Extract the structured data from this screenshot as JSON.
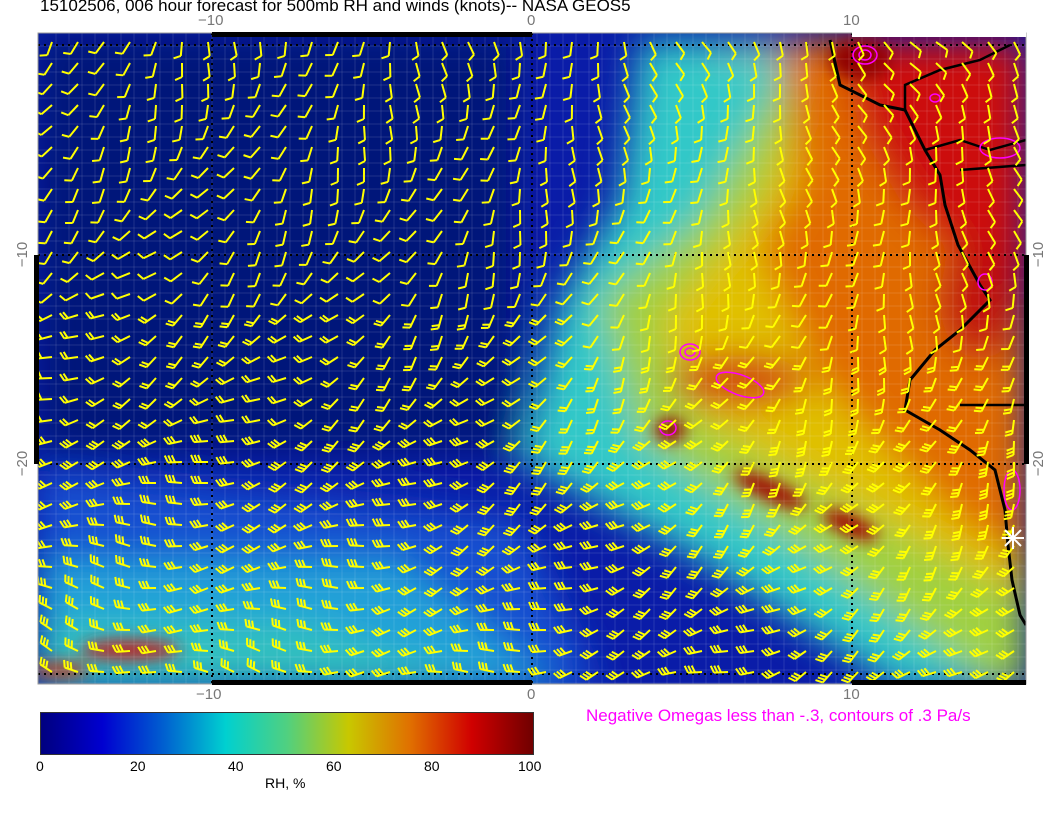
{
  "title": "15102506, 006 hour forecast for 500mb RH and winds (knots)-- NASA GEOS5",
  "map": {
    "x_ticks": [
      "−10",
      "0",
      "10"
    ],
    "y_ticks": [
      "−10",
      "−20"
    ],
    "gridlines": "dotted",
    "wind_barb_color": "#ffff00",
    "coastline_color": "#000000",
    "omega_contour_color": "#ff00ff",
    "marker_icon": "asterisk-icon"
  },
  "omega_note": "Negative Omegas less than -.3, contours of .3 Pa/s",
  "colorbar": {
    "label": "RH, %",
    "ticks": [
      "0",
      "20",
      "40",
      "60",
      "80",
      "100"
    ],
    "range": [
      0,
      100
    ],
    "colors": [
      "#00007f",
      "#0000d0",
      "#0060d0",
      "#00d0d0",
      "#50d080",
      "#c8c800",
      "#e07000",
      "#d00000",
      "#700000"
    ]
  }
}
